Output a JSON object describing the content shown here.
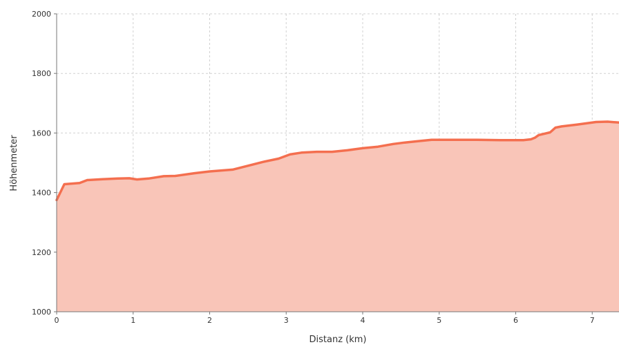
{
  "chart_data": {
    "type": "area",
    "title": "",
    "xlabel": "Distanz (km)",
    "ylabel": "Höhenmeter",
    "xlim": [
      0,
      7.35
    ],
    "ylim": [
      1000,
      2000
    ],
    "x_ticks": [
      0,
      1,
      2,
      3,
      4,
      5,
      6,
      7
    ],
    "y_ticks": [
      1000,
      1200,
      1400,
      1600,
      1800,
      2000
    ],
    "grid": true,
    "legend": "none",
    "colors": {
      "line": "#f46f4f",
      "fill": "#f9c5b8",
      "grid": "#d0d0d0",
      "axis": "#777777"
    },
    "series": [
      {
        "x": [
          0,
          0.1,
          0.3,
          0.4,
          0.6,
          0.8,
          0.95,
          1.05,
          1.2,
          1.4,
          1.55,
          1.8,
          2.0,
          2.3,
          2.5,
          2.7,
          2.9,
          3.05,
          3.2,
          3.4,
          3.6,
          3.8,
          4.0,
          4.2,
          4.4,
          4.55,
          4.7,
          4.9,
          5.1,
          5.5,
          5.8,
          6.1,
          6.2,
          6.25,
          6.3,
          6.45,
          6.52,
          6.6,
          6.8,
          7.05,
          7.2,
          7.35
        ],
        "y": [
          1375,
          1428,
          1432,
          1442,
          1445,
          1447,
          1448,
          1444,
          1447,
          1455,
          1456,
          1465,
          1471,
          1477,
          1490,
          1503,
          1514,
          1528,
          1534,
          1537,
          1537,
          1542,
          1549,
          1554,
          1563,
          1568,
          1572,
          1577,
          1577,
          1577,
          1576,
          1576,
          1579,
          1584,
          1593,
          1602,
          1618,
          1622,
          1628,
          1637,
          1638,
          1635
        ]
      }
    ]
  }
}
